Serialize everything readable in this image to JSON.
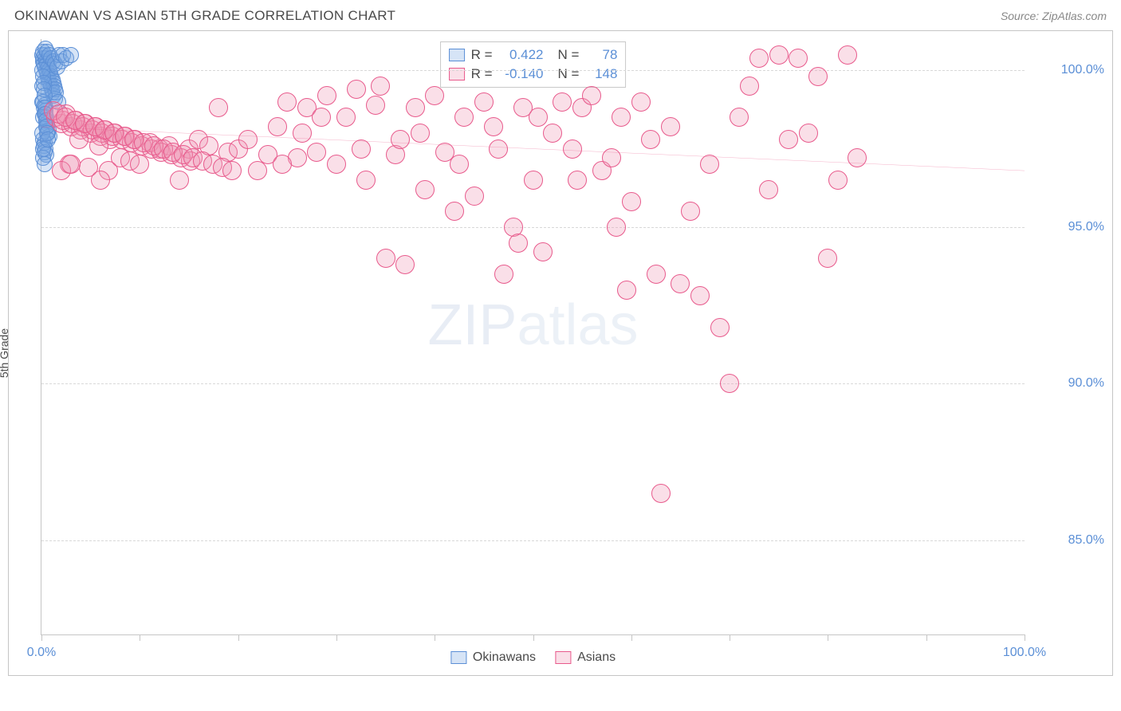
{
  "title": "OKINAWAN VS ASIAN 5TH GRADE CORRELATION CHART",
  "source": "Source: ZipAtlas.com",
  "ylabel": "5th Grade",
  "watermark_bold": "ZIP",
  "watermark_thin": "atlas",
  "chart": {
    "type": "scatter",
    "xlim": [
      0,
      100
    ],
    "ylim": [
      82,
      101
    ],
    "yticks": [
      85.0,
      90.0,
      95.0,
      100.0
    ],
    "ytick_labels": [
      "85.0%",
      "90.0%",
      "95.0%",
      "100.0%"
    ],
    "xticks": [
      0,
      10,
      20,
      30,
      40,
      50,
      60,
      70,
      80,
      90,
      100
    ],
    "xtick_labels_shown": {
      "0": "0.0%",
      "100": "100.0%"
    },
    "background_color": "#ffffff",
    "grid_color": "#d8d8d8",
    "trend_line": {
      "color": "#e85a8c",
      "width": 2,
      "y_at_x0": 98.2,
      "y_at_x100": 96.8
    },
    "series": [
      {
        "name": "Okinawans",
        "fill": "rgba(120,165,225,0.30)",
        "stroke": "#5b8fd6",
        "R": "0.422",
        "N": "78",
        "marker_radius": 10,
        "points": [
          [
            0.1,
            100.5
          ],
          [
            0.2,
            100.4
          ],
          [
            0.15,
            100.3
          ],
          [
            0.3,
            100.5
          ],
          [
            0.25,
            100.2
          ],
          [
            0.4,
            100.4
          ],
          [
            0.35,
            100.1
          ],
          [
            0.5,
            100.3
          ],
          [
            0.45,
            100.0
          ],
          [
            0.6,
            100.2
          ],
          [
            0.55,
            99.9
          ],
          [
            0.7,
            100.1
          ],
          [
            0.65,
            99.8
          ],
          [
            0.8,
            100.0
          ],
          [
            0.75,
            99.7
          ],
          [
            0.9,
            99.9
          ],
          [
            0.85,
            99.6
          ],
          [
            1.0,
            99.8
          ],
          [
            0.95,
            99.5
          ],
          [
            1.1,
            99.7
          ],
          [
            1.05,
            99.4
          ],
          [
            1.2,
            99.6
          ],
          [
            1.15,
            99.3
          ],
          [
            1.3,
            99.5
          ],
          [
            1.25,
            99.2
          ],
          [
            1.4,
            99.4
          ],
          [
            1.35,
            99.1
          ],
          [
            1.5,
            99.3
          ],
          [
            0.2,
            99.0
          ],
          [
            0.3,
            98.9
          ],
          [
            0.25,
            98.8
          ],
          [
            0.4,
            98.7
          ],
          [
            0.35,
            98.6
          ],
          [
            0.5,
            98.5
          ],
          [
            0.45,
            98.4
          ],
          [
            0.6,
            98.3
          ],
          [
            0.55,
            98.2
          ],
          [
            0.7,
            98.1
          ],
          [
            0.65,
            98.0
          ],
          [
            0.8,
            97.9
          ],
          [
            0.2,
            97.8
          ],
          [
            0.3,
            97.7
          ],
          [
            0.25,
            97.6
          ],
          [
            0.4,
            97.5
          ],
          [
            0.35,
            97.4
          ],
          [
            0.5,
            97.3
          ],
          [
            0.15,
            97.2
          ],
          [
            0.3,
            97.0
          ],
          [
            0.2,
            100.6
          ],
          [
            0.4,
            100.7
          ],
          [
            0.6,
            100.6
          ],
          [
            0.8,
            100.5
          ],
          [
            1.0,
            100.4
          ],
          [
            1.2,
            100.3
          ],
          [
            1.4,
            100.2
          ],
          [
            1.6,
            100.1
          ],
          [
            1.8,
            100.5
          ],
          [
            2.0,
            100.3
          ],
          [
            2.2,
            100.5
          ],
          [
            2.5,
            100.4
          ],
          [
            3.0,
            100.5
          ],
          [
            0.1,
            99.0
          ],
          [
            0.15,
            98.5
          ],
          [
            0.1,
            98.0
          ],
          [
            0.15,
            97.5
          ],
          [
            0.1,
            99.5
          ],
          [
            0.12,
            100.0
          ],
          [
            0.18,
            99.8
          ],
          [
            0.22,
            99.6
          ],
          [
            0.28,
            99.4
          ],
          [
            0.32,
            99.2
          ],
          [
            0.38,
            98.8
          ],
          [
            0.42,
            98.6
          ],
          [
            0.48,
            98.4
          ],
          [
            0.52,
            98.2
          ],
          [
            0.58,
            98.0
          ],
          [
            0.62,
            97.8
          ],
          [
            1.7,
            99.0
          ]
        ]
      },
      {
        "name": "Asians",
        "fill": "rgba(240,150,180,0.30)",
        "stroke": "#e85a8c",
        "R": "-0.140",
        "N": "148",
        "marker_radius": 12,
        "points": [
          [
            1.5,
            98.5
          ],
          [
            2.0,
            98.3
          ],
          [
            2.5,
            98.6
          ],
          [
            3.0,
            98.2
          ],
          [
            3.5,
            98.4
          ],
          [
            4.0,
            98.1
          ],
          [
            4.5,
            98.3
          ],
          [
            5.0,
            98.0
          ],
          [
            5.5,
            98.2
          ],
          [
            6.0,
            97.9
          ],
          [
            6.5,
            98.1
          ],
          [
            7.0,
            97.8
          ],
          [
            7.5,
            98.0
          ],
          [
            8.0,
            97.2
          ],
          [
            8.5,
            97.9
          ],
          [
            9.0,
            97.1
          ],
          [
            9.5,
            97.8
          ],
          [
            10.0,
            97.0
          ],
          [
            11.0,
            97.7
          ],
          [
            12.0,
            97.5
          ],
          [
            13.0,
            97.6
          ],
          [
            14.0,
            96.5
          ],
          [
            15.0,
            97.5
          ],
          [
            16.0,
            97.8
          ],
          [
            17.0,
            97.6
          ],
          [
            18.0,
            98.8
          ],
          [
            19.0,
            97.4
          ],
          [
            20.0,
            97.5
          ],
          [
            21.0,
            97.8
          ],
          [
            22.0,
            96.8
          ],
          [
            23.0,
            97.3
          ],
          [
            24.0,
            98.2
          ],
          [
            25.0,
            99.0
          ],
          [
            26.0,
            97.2
          ],
          [
            27.0,
            98.8
          ],
          [
            28.0,
            97.4
          ],
          [
            29.0,
            99.2
          ],
          [
            30.0,
            97.0
          ],
          [
            31.0,
            98.5
          ],
          [
            32.0,
            99.4
          ],
          [
            33.0,
            96.5
          ],
          [
            34.0,
            98.9
          ],
          [
            35.0,
            94.0
          ],
          [
            36.0,
            97.3
          ],
          [
            37.0,
            93.8
          ],
          [
            38.0,
            98.8
          ],
          [
            39.0,
            96.2
          ],
          [
            40.0,
            99.2
          ],
          [
            41.0,
            97.4
          ],
          [
            42.0,
            95.5
          ],
          [
            43.0,
            98.5
          ],
          [
            44.0,
            96.0
          ],
          [
            45.0,
            99.0
          ],
          [
            46.0,
            98.2
          ],
          [
            47.0,
            93.5
          ],
          [
            48.0,
            95.0
          ],
          [
            49.0,
            98.8
          ],
          [
            50.0,
            96.5
          ],
          [
            51.0,
            94.2
          ],
          [
            52.0,
            98.0
          ],
          [
            53.0,
            99.0
          ],
          [
            54.0,
            97.5
          ],
          [
            55.0,
            98.8
          ],
          [
            56.0,
            99.2
          ],
          [
            57.0,
            96.8
          ],
          [
            58.0,
            97.2
          ],
          [
            59.0,
            98.5
          ],
          [
            60.0,
            95.8
          ],
          [
            61.0,
            99.0
          ],
          [
            62.0,
            97.8
          ],
          [
            63.0,
            86.5
          ],
          [
            64.0,
            98.2
          ],
          [
            65.0,
            93.2
          ],
          [
            66.0,
            95.5
          ],
          [
            67.0,
            92.8
          ],
          [
            68.0,
            97.0
          ],
          [
            69.0,
            91.8
          ],
          [
            70.0,
            90.0
          ],
          [
            71.0,
            98.5
          ],
          [
            72.0,
            99.5
          ],
          [
            73.0,
            100.4
          ],
          [
            74.0,
            96.2
          ],
          [
            75.0,
            100.5
          ],
          [
            76.0,
            97.8
          ],
          [
            77.0,
            100.4
          ],
          [
            78.0,
            98.0
          ],
          [
            79.0,
            99.8
          ],
          [
            80.0,
            94.0
          ],
          [
            81.0,
            96.5
          ],
          [
            82.0,
            100.5
          ],
          [
            83.0,
            97.2
          ],
          [
            2.2,
            98.4
          ],
          [
            3.2,
            98.3
          ],
          [
            4.2,
            98.2
          ],
          [
            5.2,
            98.1
          ],
          [
            6.2,
            98.0
          ],
          [
            7.2,
            97.9
          ],
          [
            8.2,
            97.8
          ],
          [
            9.2,
            97.7
          ],
          [
            10.2,
            97.6
          ],
          [
            11.2,
            97.5
          ],
          [
            12.2,
            97.4
          ],
          [
            13.2,
            97.3
          ],
          [
            14.2,
            97.2
          ],
          [
            15.2,
            97.1
          ],
          [
            2.8,
            97.0
          ],
          [
            3.8,
            97.8
          ],
          [
            4.8,
            96.9
          ],
          [
            5.8,
            97.6
          ],
          [
            6.8,
            96.8
          ],
          [
            1.2,
            98.7
          ],
          [
            1.8,
            98.6
          ],
          [
            2.4,
            98.5
          ],
          [
            3.4,
            98.4
          ],
          [
            4.4,
            98.3
          ],
          [
            5.4,
            98.2
          ],
          [
            6.4,
            98.1
          ],
          [
            7.4,
            98.0
          ],
          [
            8.4,
            97.9
          ],
          [
            9.4,
            97.8
          ],
          [
            10.4,
            97.7
          ],
          [
            11.4,
            97.6
          ],
          [
            12.4,
            97.5
          ],
          [
            13.4,
            97.4
          ],
          [
            14.4,
            97.3
          ],
          [
            15.4,
            97.2
          ],
          [
            16.4,
            97.1
          ],
          [
            17.4,
            97.0
          ],
          [
            18.4,
            96.9
          ],
          [
            19.4,
            96.8
          ],
          [
            48.5,
            94.5
          ],
          [
            59.5,
            93.0
          ],
          [
            62.5,
            93.5
          ],
          [
            2.0,
            96.8
          ],
          [
            3.0,
            97.0
          ],
          [
            6.0,
            96.5
          ],
          [
            34.5,
            99.5
          ],
          [
            38.5,
            98.0
          ],
          [
            42.5,
            97.0
          ],
          [
            46.5,
            97.5
          ],
          [
            50.5,
            98.5
          ],
          [
            54.5,
            96.5
          ],
          [
            58.5,
            95.0
          ],
          [
            28.5,
            98.5
          ],
          [
            32.5,
            97.5
          ],
          [
            36.5,
            97.8
          ],
          [
            24.5,
            97.0
          ],
          [
            26.5,
            98.0
          ]
        ]
      }
    ]
  },
  "legend": {
    "r_label": "R =",
    "n_label": "N =",
    "series1_label": "Okinawans",
    "series2_label": "Asians"
  }
}
